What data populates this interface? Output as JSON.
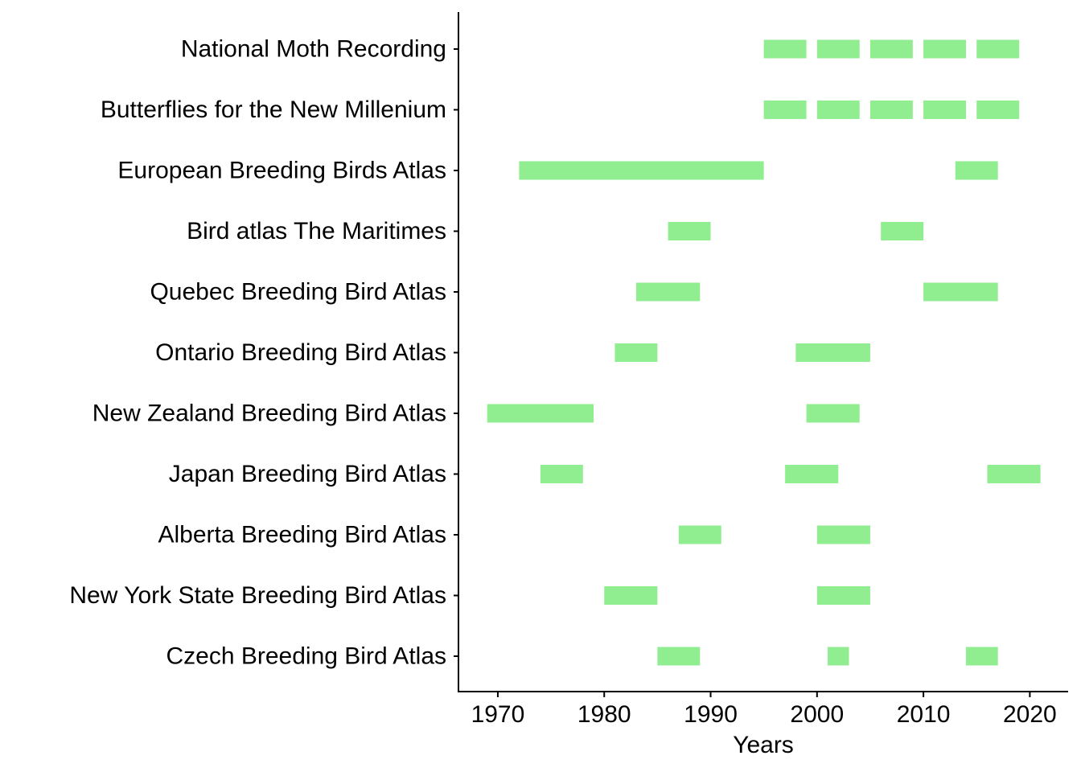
{
  "chart_data": {
    "type": "bar",
    "subtype": "timeline",
    "title": "",
    "xlabel": "Years",
    "ylabel": "",
    "xlim": [
      1966.3,
      2023.6
    ],
    "xticks": [
      1970,
      1980,
      1990,
      2000,
      2010,
      2020
    ],
    "grid": false,
    "legend": "none",
    "bar_color": "#90EE90",
    "axis_color": "#000000",
    "categories": [
      "National Moth Recording",
      "Butterflies for the New Millenium",
      "European Breeding Birds Atlas",
      "Bird atlas The Maritimes",
      "Quebec Breeding Bird Atlas",
      "Ontario Breeding Bird Atlas",
      "New Zealand Breeding Bird Atlas",
      "Japan Breeding Bird Atlas",
      "Alberta Breeding Bird Atlas",
      "New York State Breeding Bird Atlas",
      "Czech Breeding Bird Atlas"
    ],
    "segments": [
      [
        [
          1995,
          1999
        ],
        [
          2000,
          2004
        ],
        [
          2005,
          2009
        ],
        [
          2010,
          2014
        ],
        [
          2015,
          2019
        ]
      ],
      [
        [
          1995,
          1999
        ],
        [
          2000,
          2004
        ],
        [
          2005,
          2009
        ],
        [
          2010,
          2014
        ],
        [
          2015,
          2019
        ]
      ],
      [
        [
          1972,
          1995
        ],
        [
          2013,
          2017
        ]
      ],
      [
        [
          1986,
          1990
        ],
        [
          2006,
          2010
        ]
      ],
      [
        [
          1983,
          1989
        ],
        [
          2010,
          2017
        ]
      ],
      [
        [
          1981,
          1985
        ],
        [
          1998,
          2005
        ]
      ],
      [
        [
          1969,
          1979
        ],
        [
          1999,
          2004
        ]
      ],
      [
        [
          1974,
          1978
        ],
        [
          1997,
          2002
        ],
        [
          2016,
          2021
        ]
      ],
      [
        [
          1987,
          1991
        ],
        [
          2000,
          2005
        ]
      ],
      [
        [
          1980,
          1985
        ],
        [
          2000,
          2005
        ]
      ],
      [
        [
          1985,
          1989
        ],
        [
          2001,
          2003
        ],
        [
          2014,
          2017
        ]
      ]
    ]
  }
}
